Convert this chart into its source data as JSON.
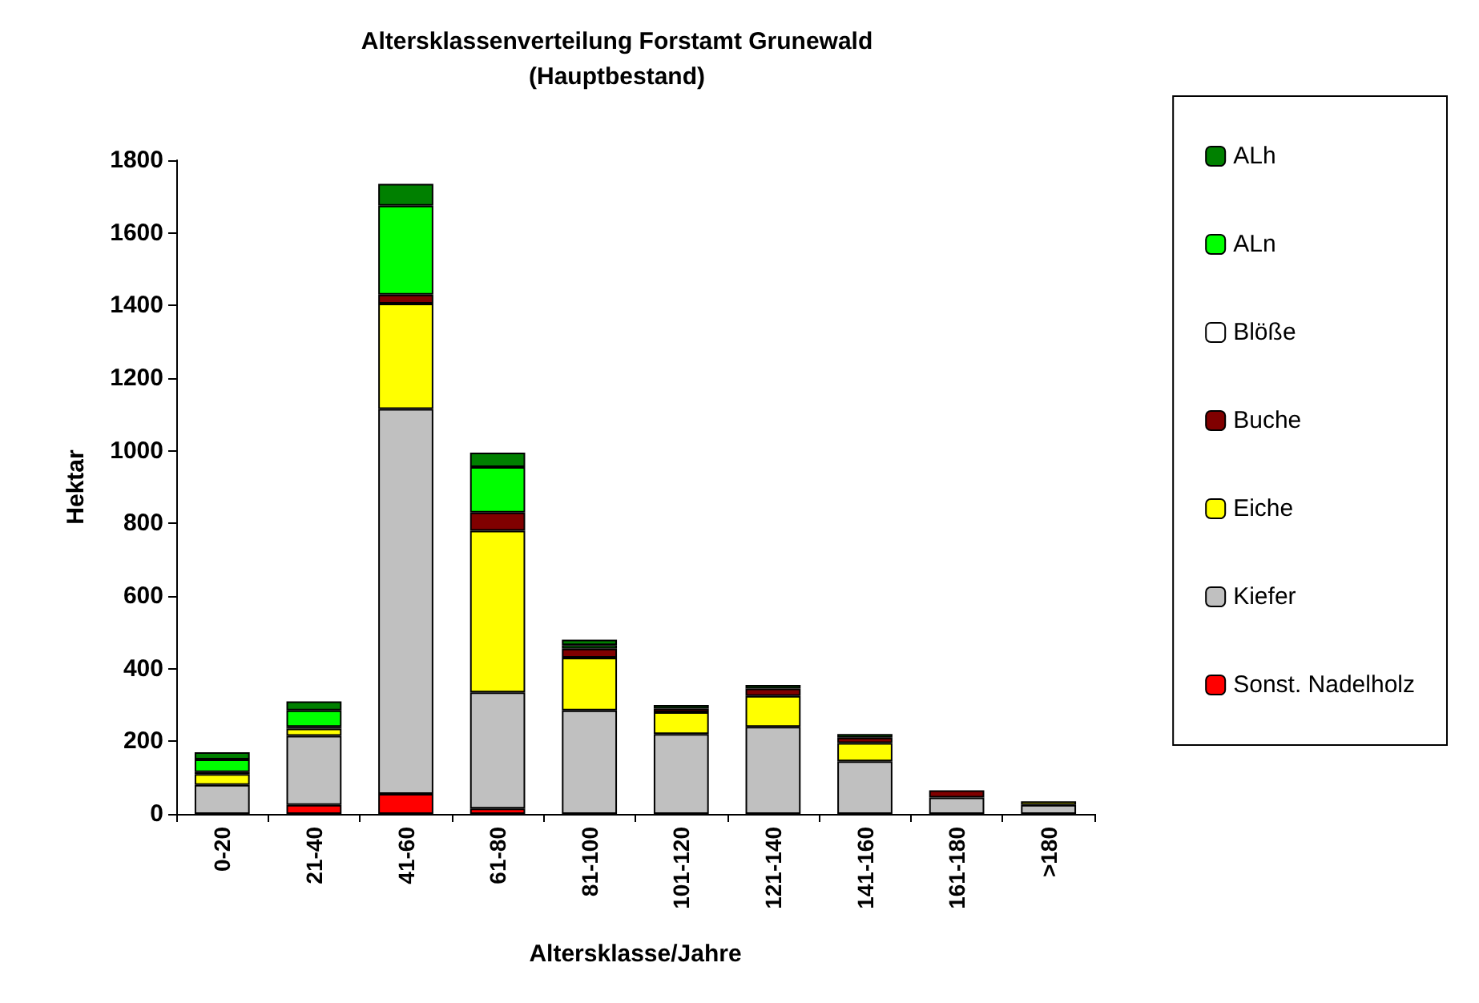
{
  "chart_data": {
    "type": "bar",
    "title": "Altersklassenverteilung Forstamt Grunewald\n(Hauptbestand)",
    "xlabel": "Altersklasse/Jahre",
    "ylabel": "Hektar",
    "categories": [
      "0-20",
      "21-40",
      "41-60",
      "61-80",
      "81-100",
      "101-120",
      "121-140",
      "141-160",
      "161-180",
      ">180"
    ],
    "stacked": true,
    "grid": false,
    "legend": "right",
    "ylim": [
      0,
      1800
    ],
    "yticks": [
      0,
      200,
      400,
      600,
      800,
      1000,
      1200,
      1400,
      1600,
      1800
    ],
    "series": [
      {
        "name": "Sonst. Nadelholz",
        "color": "#ff0000",
        "values": [
          null,
          25,
          55,
          15,
          null,
          null,
          null,
          null,
          null,
          null
        ]
      },
      {
        "name": "Kiefer",
        "color": "#c0c0c0",
        "values": [
          80,
          190,
          1060,
          320,
          285,
          220,
          240,
          145,
          45,
          25
        ]
      },
      {
        "name": "Eiche",
        "color": "#ffff00",
        "values": [
          30,
          20,
          290,
          445,
          145,
          60,
          85,
          50,
          null,
          10
        ]
      },
      {
        "name": "Buche",
        "color": "#800000",
        "values": [
          5,
          5,
          25,
          50,
          25,
          10,
          20,
          15,
          20,
          null
        ]
      },
      {
        "name": "Blöße",
        "color": "#ffffff",
        "values": [
          null,
          null,
          null,
          null,
          null,
          null,
          null,
          null,
          null,
          null
        ]
      },
      {
        "name": "ALn",
        "color": "#00ff00",
        "values": [
          35,
          45,
          245,
          125,
          10,
          null,
          null,
          null,
          null,
          null
        ]
      },
      {
        "name": "ALh",
        "color": "#008000",
        "values": [
          20,
          25,
          60,
          40,
          15,
          10,
          10,
          10,
          null,
          null
        ]
      }
    ]
  }
}
